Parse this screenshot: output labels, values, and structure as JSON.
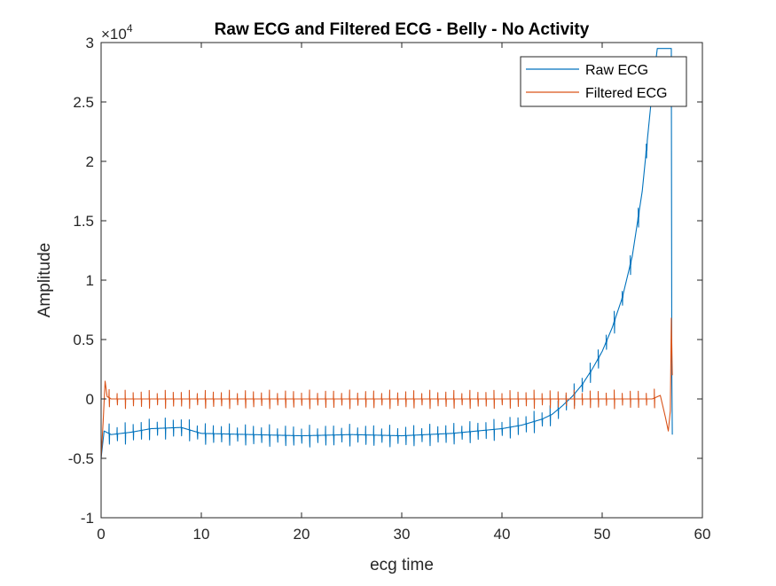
{
  "chart_data": {
    "type": "line",
    "title": "Raw ECG and Filtered ECG - Belly - No Activity",
    "xlabel": "ecg time",
    "ylabel": "Amplitude",
    "y_exponent_label": "×10",
    "y_exponent_power": "4",
    "xlim": [
      0,
      60
    ],
    "ylim": [
      -1,
      3
    ],
    "x_ticks": [
      0,
      10,
      20,
      30,
      40,
      50,
      60
    ],
    "x_tick_labels": [
      "0",
      "10",
      "20",
      "30",
      "40",
      "50",
      "60"
    ],
    "y_ticks": [
      -1,
      -0.5,
      0,
      0.5,
      1,
      1.5,
      2,
      2.5,
      3
    ],
    "y_tick_labels": [
      "-1",
      "-0.5",
      "0",
      "0.5",
      "1",
      "1.5",
      "2",
      "2.5",
      "3"
    ],
    "grid": false,
    "legend_position": "top-right",
    "series": [
      {
        "name": "Raw ECG",
        "color": "#0072BD",
        "x": [
          0,
          0.3,
          1,
          3,
          5,
          8,
          10,
          15,
          20,
          25,
          30,
          35,
          40,
          42,
          44,
          45,
          46,
          47,
          48,
          49,
          50,
          51,
          52,
          53,
          54,
          55,
          55.5,
          56.9,
          56.95,
          57.0
        ],
        "y": [
          -0.5,
          -0.27,
          -0.3,
          -0.28,
          -0.25,
          -0.24,
          -0.29,
          -0.3,
          -0.31,
          -0.3,
          -0.31,
          -0.29,
          -0.25,
          -0.22,
          -0.17,
          -0.13,
          -0.06,
          0.02,
          0.12,
          0.25,
          0.4,
          0.6,
          0.85,
          1.2,
          1.75,
          2.6,
          2.95,
          2.95,
          0.2,
          -0.3
        ],
        "spike_period": 0.8,
        "spike_amplitude": 0.07
      },
      {
        "name": "Filtered ECG",
        "color": "#D95319",
        "x": [
          0,
          0.2,
          0.4,
          0.6,
          1,
          2,
          10,
          20,
          30,
          40,
          50,
          55,
          55.8,
          56.3,
          56.6,
          56.8,
          56.9,
          57.0
        ],
        "y": [
          -0.5,
          -0.2,
          0.15,
          0.02,
          0.0,
          0.0,
          0.0,
          0.0,
          0.0,
          0.0,
          0.0,
          0.0,
          0.03,
          -0.15,
          -0.27,
          -0.1,
          0.68,
          0.2
        ],
        "spike_period": 0.8,
        "spike_amplitude": 0.06
      }
    ]
  }
}
